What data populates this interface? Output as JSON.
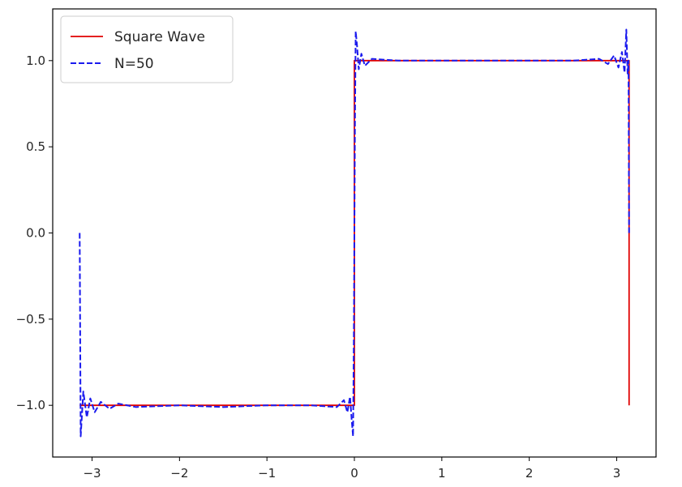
{
  "chart_data": {
    "type": "line",
    "title": "",
    "xlabel": "",
    "ylabel": "",
    "xlim": [
      -3.45,
      3.45
    ],
    "ylim": [
      -1.3,
      1.3
    ],
    "grid": false,
    "legend_position": "upper-left",
    "x_ticks": [
      {
        "value": -3,
        "label": "−3"
      },
      {
        "value": -2,
        "label": "−2"
      },
      {
        "value": -1,
        "label": "−1"
      },
      {
        "value": 0,
        "label": "0"
      },
      {
        "value": 1,
        "label": "1"
      },
      {
        "value": 2,
        "label": "2"
      },
      {
        "value": 3,
        "label": "3"
      }
    ],
    "y_ticks": [
      {
        "value": -1.0,
        "label": "−1.0"
      },
      {
        "value": -0.5,
        "label": "−0.5"
      },
      {
        "value": 0.0,
        "label": "0.0"
      },
      {
        "value": 0.5,
        "label": "0.5"
      },
      {
        "value": 1.0,
        "label": "1.0"
      }
    ],
    "series": [
      {
        "name": "Square Wave",
        "color": "#e00000",
        "style": "solid",
        "x": [
          -3.1416,
          0.0,
          0.0,
          3.1416,
          3.1416
        ],
        "y": [
          -1.0,
          -1.0,
          1.0,
          1.0,
          -1.0
        ]
      },
      {
        "name": "N=50",
        "color": "#1a1aee",
        "style": "dashed",
        "x": [
          -3.1416,
          -3.13,
          -3.1,
          -3.06,
          -3.02,
          -2.97,
          -2.9,
          -2.8,
          -2.7,
          -2.5,
          -2.0,
          -1.5,
          -1.0,
          -0.5,
          -0.2,
          -0.12,
          -0.08,
          -0.05,
          -0.03,
          -0.015,
          -0.006,
          0.0,
          0.006,
          0.015,
          0.03,
          0.05,
          0.08,
          0.12,
          0.2,
          0.5,
          1.0,
          1.5,
          2.0,
          2.5,
          2.8,
          2.9,
          2.97,
          3.02,
          3.06,
          3.09,
          3.11,
          3.125,
          3.135,
          3.1416
        ],
        "y": [
          0.0,
          -1.18,
          -0.92,
          -1.07,
          -0.96,
          -1.04,
          -0.98,
          -1.02,
          -0.99,
          -1.01,
          -1.0,
          -1.01,
          -1.0,
          -1.0,
          -1.01,
          -0.97,
          -1.04,
          -0.95,
          -1.09,
          -1.18,
          -0.6,
          0.0,
          0.6,
          1.17,
          1.09,
          0.95,
          1.04,
          0.97,
          1.01,
          1.0,
          1.0,
          1.0,
          1.0,
          1.0,
          1.01,
          0.98,
          1.03,
          0.96,
          1.05,
          0.93,
          1.18,
          0.92,
          1.0,
          0.0
        ]
      }
    ]
  }
}
